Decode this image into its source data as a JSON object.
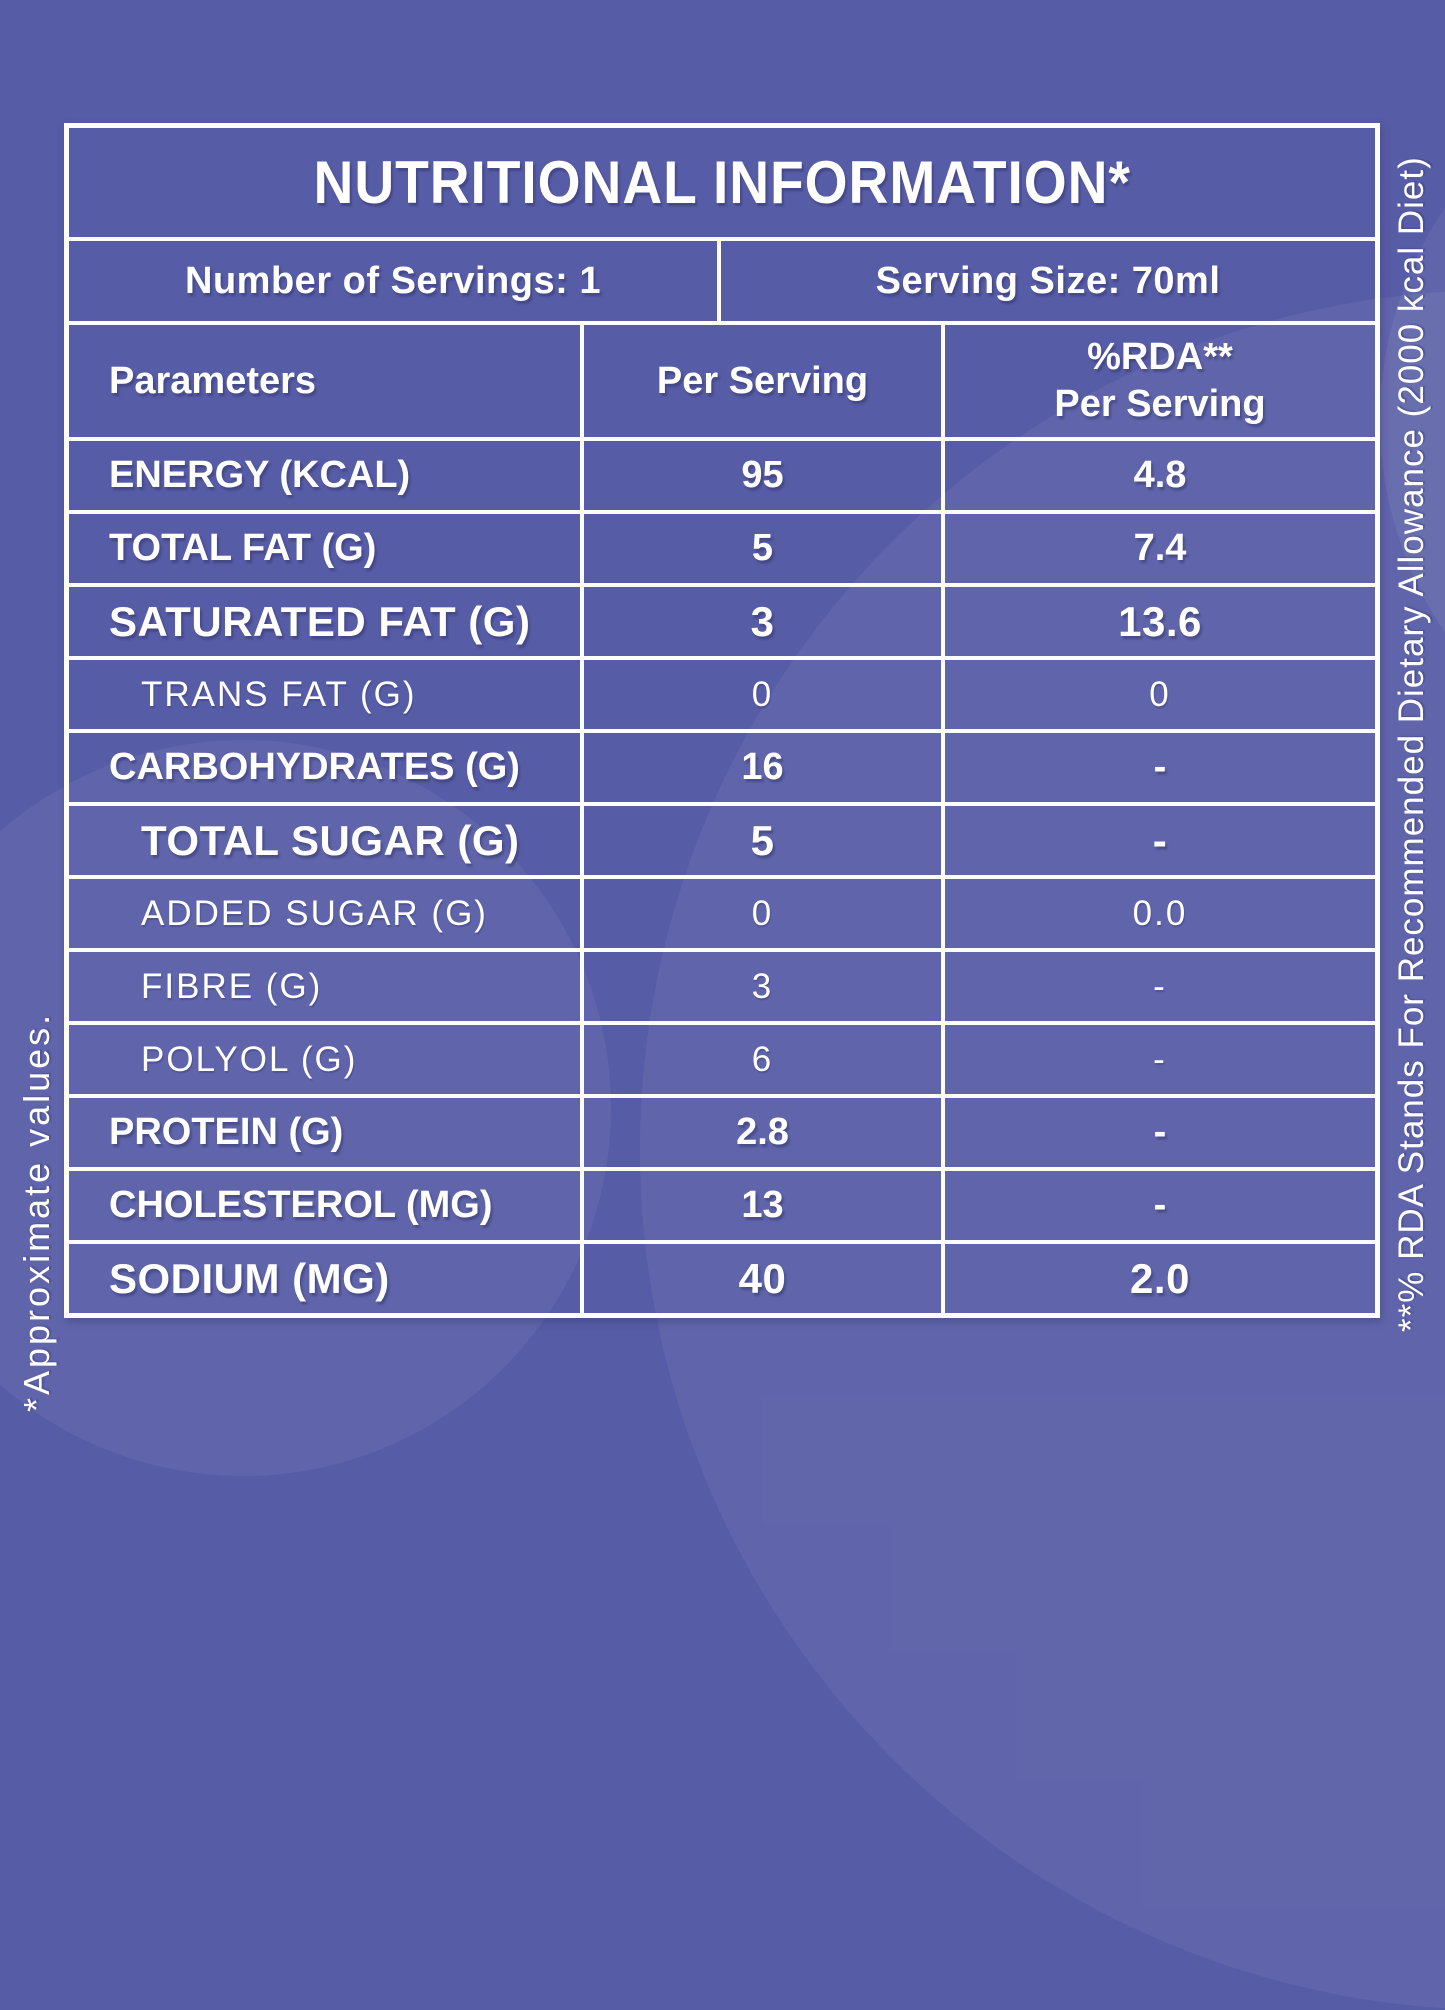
{
  "title": "NUTRITIONAL INFORMATION*",
  "servings": {
    "count_label": "Number of Servings: 1",
    "size_label": "Serving Size: 70ml"
  },
  "header": {
    "parameters": "Parameters",
    "per_serving": "Per Serving",
    "rda_line1": "%RDA**",
    "rda_line2": "Per Serving"
  },
  "rows": [
    {
      "label": "ENERGY (KCAL)",
      "per_serving": "95",
      "rda": "4.8",
      "style": "bold",
      "indent": 0
    },
    {
      "label": "TOTAL FAT (G)",
      "per_serving": "5",
      "rda": "7.4",
      "style": "bold",
      "indent": 0
    },
    {
      "label": "SATURATED FAT (G)",
      "per_serving": "3",
      "rda": "13.6",
      "style": "bold-large",
      "indent": 0
    },
    {
      "label": "TRANS FAT (G)",
      "per_serving": "0",
      "rda": "0",
      "style": "light",
      "indent": 1
    },
    {
      "label": "CARBOHYDRATES (G)",
      "per_serving": "16",
      "rda": "-",
      "style": "bold",
      "indent": 0
    },
    {
      "label": "TOTAL SUGAR (G)",
      "per_serving": "5",
      "rda": "-",
      "style": "bold-large",
      "indent": 1
    },
    {
      "label": "ADDED SUGAR (G)",
      "per_serving": "0",
      "rda": "0.0",
      "style": "light",
      "indent": 1
    },
    {
      "label": "FIBRE (G)",
      "per_serving": "3",
      "rda": "-",
      "style": "light",
      "indent": 1
    },
    {
      "label": "POLYOL (G)",
      "per_serving": "6",
      "rda": "-",
      "style": "light",
      "indent": 1
    },
    {
      "label": "PROTEIN (G)",
      "per_serving": "2.8",
      "rda": "-",
      "style": "bold",
      "indent": 0
    },
    {
      "label": "CHOLESTEROL (MG)",
      "per_serving": "13",
      "rda": "-",
      "style": "bold",
      "indent": 0
    },
    {
      "label": "SODIUM (MG)",
      "per_serving": "40",
      "rda": "2.0",
      "style": "bold-large",
      "indent": 0
    }
  ],
  "footnotes": {
    "left": "*Approximate values.",
    "right": "**% RDA Stands For Recommended Dietary Allowance (2000 kcal Diet)"
  },
  "colors": {
    "background": "#575CA6",
    "table_line": "#FDFDFD",
    "text": "#FFFFFF",
    "circle_tint": "rgba(255,255,255,0.06)"
  }
}
